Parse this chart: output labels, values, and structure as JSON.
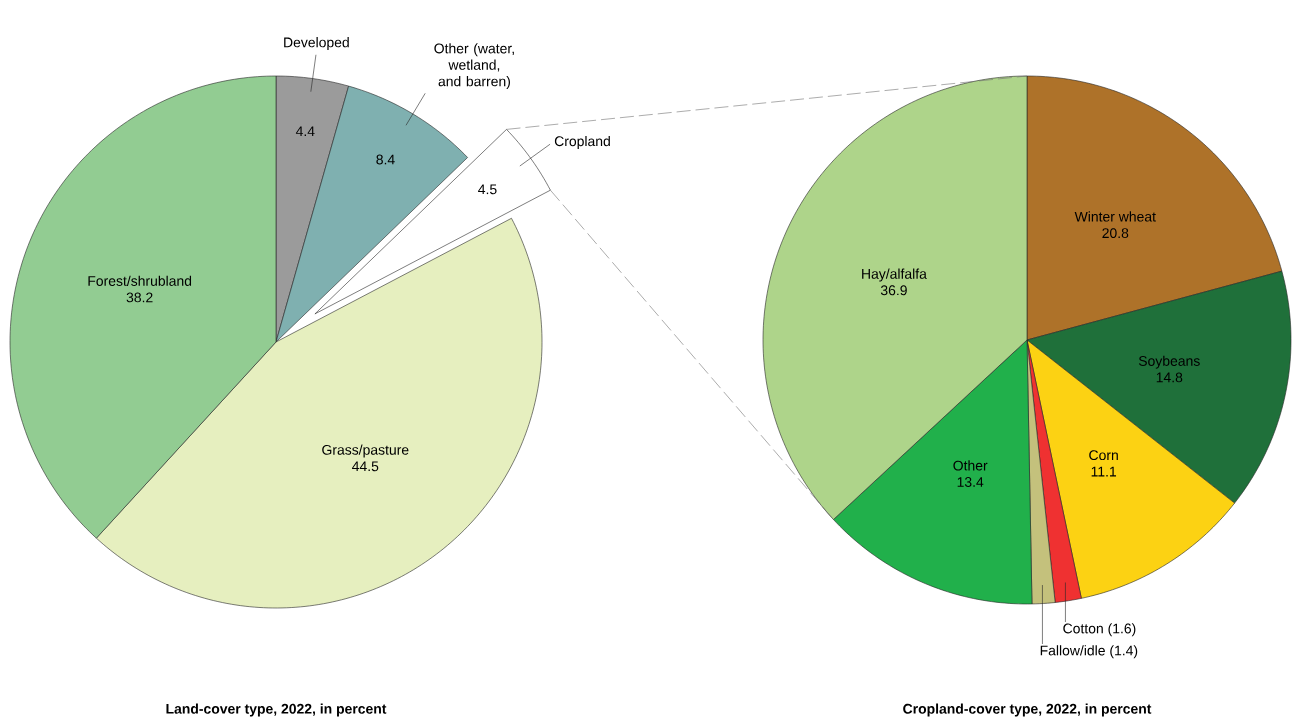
{
  "chart_data": [
    {
      "type": "pie",
      "title": "Land-cover type, 2022, in percent",
      "categories": [
        "Developed",
        "Other (water, wetland, and barren)",
        "Cropland",
        "Grass/pasture",
        "Forest/shrubland"
      ],
      "values": [
        4.4,
        8.4,
        4.5,
        44.5,
        38.2
      ],
      "colors": [
        "#9b9b9b",
        "#7fb0b0",
        "#ffffff",
        "#e6efbf",
        "#92cc92"
      ],
      "data_labels": true
    },
    {
      "type": "pie",
      "title": "Cropland-cover type, 2022, in percent",
      "categories": [
        "Winter wheat",
        "Soybeans",
        "Corn",
        "Cotton",
        "Fallow/idle",
        "Other",
        "Hay/alfalfa"
      ],
      "values": [
        20.8,
        14.8,
        11.1,
        1.6,
        1.4,
        13.4,
        36.9
      ],
      "colors": [
        "#ae7229",
        "#1f703a",
        "#fcd213",
        "#ef3131",
        "#c4c17c",
        "#21b04b",
        "#aed48a"
      ],
      "value_labels": [
        "20.8",
        "14.8",
        "11.1",
        "(1.6)",
        "(1.4)",
        "13.4",
        "36.9"
      ]
    }
  ]
}
